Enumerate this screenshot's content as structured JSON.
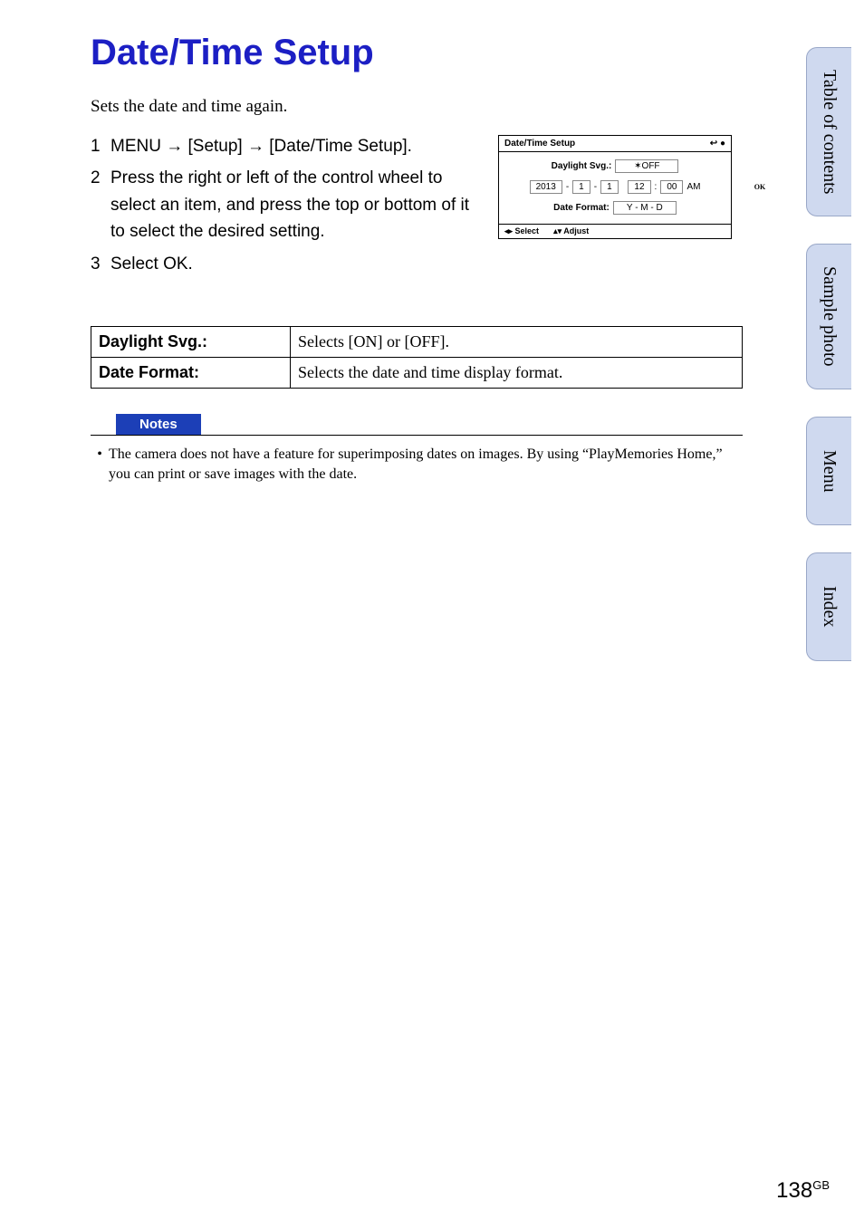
{
  "colors": {
    "title": "#1c1fc4",
    "tab_bg": "#cfd9ef",
    "tab_border": "#9aa8c8",
    "notes_badge": "#1c3fb7",
    "text": "#000000",
    "background": "#ffffff"
  },
  "title": "Date/Time Setup",
  "intro": "Sets the date and time again.",
  "steps": [
    {
      "num": "1",
      "text": "MENU → [Setup] → [Date/Time Setup]."
    },
    {
      "num": "2",
      "text": "Press the right or left of the control wheel to select an item, and press the top or bottom of it to select the desired setting."
    },
    {
      "num": "3",
      "text": "Select OK."
    }
  ],
  "screen": {
    "title": "Date/Time Setup",
    "back_icon": "↩ ●",
    "daylight_label": "Daylight Svg.:",
    "daylight_value": "✶OFF",
    "year": "2013",
    "month": "1",
    "day": "1",
    "hour": "12",
    "minute": "00",
    "ampm": "AM",
    "date_format_label": "Date Format:",
    "date_format_value": "Y - M - D",
    "foot_select": "◂▸ Select",
    "foot_adjust": "▴▾ Adjust",
    "ok_label": "OK"
  },
  "options_table": [
    {
      "label": "Daylight Svg.:",
      "desc": "Selects [ON] or [OFF]."
    },
    {
      "label": "Date Format:",
      "desc": "Selects the date and time display format."
    }
  ],
  "notes": {
    "heading": "Notes",
    "items": [
      "The camera does not have a feature for superimposing dates on images. By using “PlayMemories Home,” you can print or save images with the date."
    ]
  },
  "side_tabs": [
    "Table of contents",
    "Sample photo",
    "Menu",
    "Index"
  ],
  "page_number": {
    "num": "138",
    "suffix": "GB"
  }
}
